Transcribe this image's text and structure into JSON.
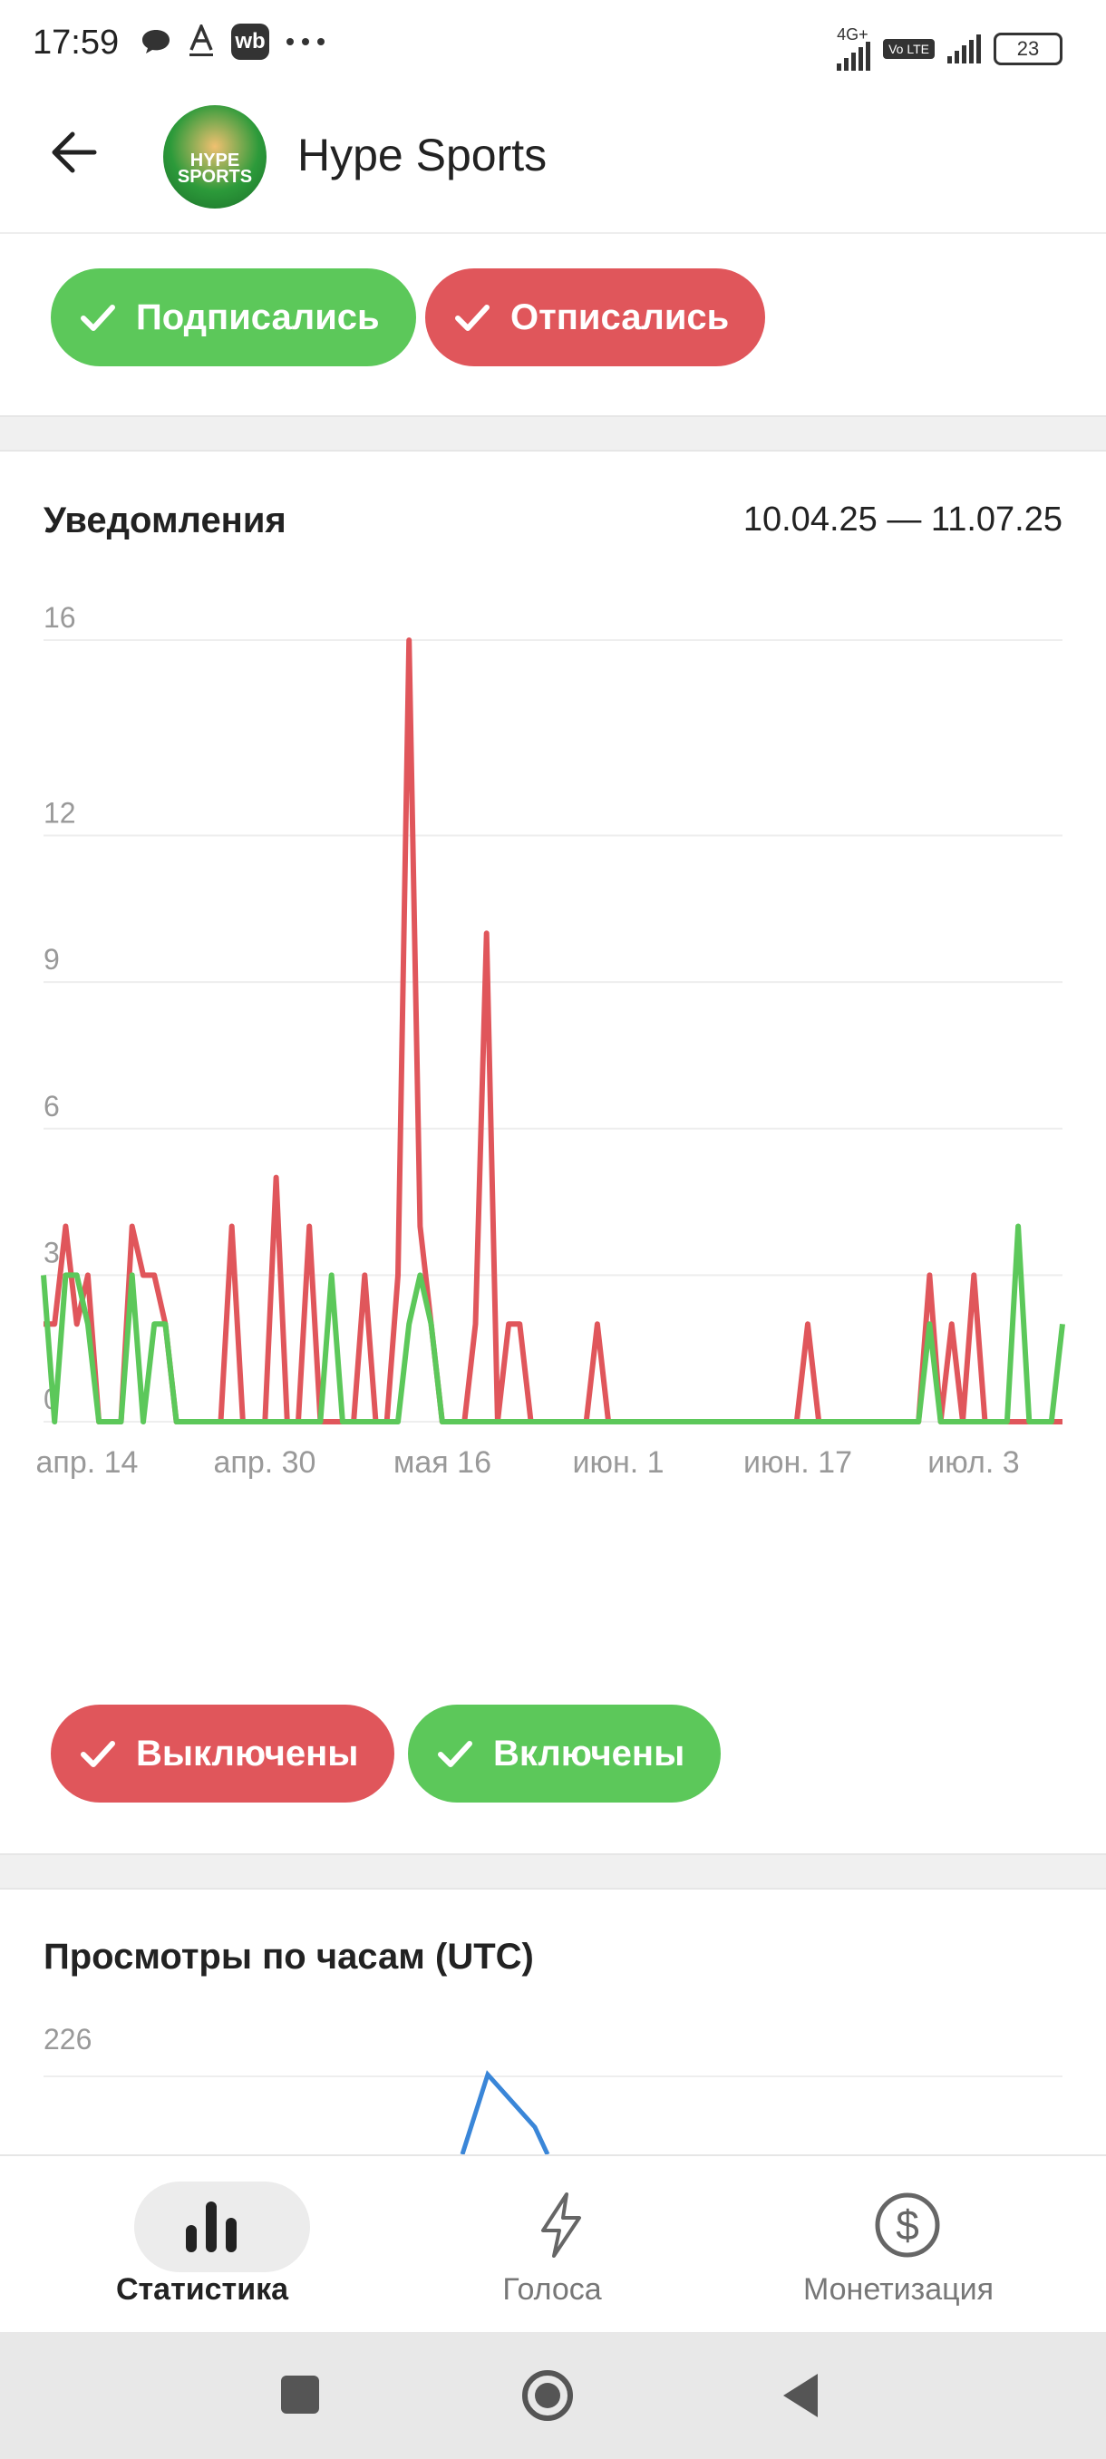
{
  "status_bar": {
    "time": "17:59",
    "left_icons": [
      "chat-bubble-icon",
      "font-a-icon",
      "wb-app-icon",
      "more-dots-icon"
    ],
    "wb_label": "wb",
    "network": "4G+",
    "volte": "Vo LTE",
    "battery": "23"
  },
  "header": {
    "title": "Hype Sports",
    "avatar_text": "HYPE SPORTS"
  },
  "top_filters": [
    {
      "label": "Подписались",
      "color": "#5cc85a",
      "checked": true
    },
    {
      "label": "Отписались",
      "color": "#e0565b",
      "checked": true
    }
  ],
  "notifications_card": {
    "title": "Уведомления",
    "date_range": "10.04.25 — 11.07.25"
  },
  "chart_data": {
    "type": "line",
    "title": "Уведомления",
    "y_ticks": [
      "16",
      "12",
      "9",
      "6",
      "3",
      "0"
    ],
    "x_ticks": [
      "апр. 14",
      "апр. 30",
      "мая 16",
      "июн. 1",
      "июн. 17",
      "июл. 3"
    ],
    "ylim": [
      0,
      16
    ],
    "x_count": 93,
    "grid": true,
    "series": [
      {
        "name": "Выключены",
        "color": "#e0565b",
        "values": [
          2,
          2,
          4,
          2,
          3,
          0,
          0,
          0,
          4,
          3,
          3,
          2,
          0,
          0,
          0,
          0,
          0,
          4,
          0,
          0,
          0,
          5,
          0,
          0,
          4,
          0,
          0,
          0,
          0,
          3,
          0,
          0,
          3,
          16,
          4,
          2,
          0,
          0,
          0,
          2,
          10,
          0,
          2,
          2,
          0,
          0,
          0,
          0,
          0,
          0,
          2,
          0,
          0,
          0,
          0,
          0,
          0,
          0,
          0,
          0,
          0,
          0,
          0,
          0,
          0,
          0,
          0,
          0,
          0,
          2,
          0,
          0,
          0,
          0,
          0,
          0,
          0,
          0,
          0,
          0,
          3,
          0,
          2,
          0,
          3,
          0,
          0,
          0,
          0,
          0,
          0,
          0,
          0
        ]
      },
      {
        "name": "Включены",
        "color": "#5cc85a",
        "values": [
          3,
          0,
          3,
          3,
          2,
          0,
          0,
          0,
          3,
          0,
          2,
          2,
          0,
          0,
          0,
          0,
          0,
          0,
          0,
          0,
          0,
          0,
          0,
          0,
          0,
          0,
          3,
          0,
          0,
          0,
          0,
          0,
          0,
          2,
          3,
          2,
          0,
          0,
          0,
          0,
          0,
          0,
          0,
          0,
          0,
          0,
          0,
          0,
          0,
          0,
          0,
          0,
          0,
          0,
          0,
          0,
          0,
          0,
          0,
          0,
          0,
          0,
          0,
          0,
          0,
          0,
          0,
          0,
          0,
          0,
          0,
          0,
          0,
          0,
          0,
          0,
          0,
          0,
          0,
          0,
          2,
          0,
          0,
          0,
          0,
          0,
          0,
          0,
          4,
          0,
          0,
          0,
          2
        ]
      }
    ]
  },
  "legend_filters": [
    {
      "label": "Выключены",
      "color": "#e0565b",
      "checked": true
    },
    {
      "label": "Включены",
      "color": "#5cc85a",
      "checked": true
    }
  ],
  "hourly_views_card": {
    "title": "Просмотры по часам (UTC)",
    "y_top_tick": "226",
    "line_color": "#3a86d8"
  },
  "bottom_nav": {
    "items": [
      {
        "label": "Статистика",
        "icon": "bar-chart-icon",
        "active": true
      },
      {
        "label": "Голоса",
        "icon": "lightning-icon",
        "active": false
      },
      {
        "label": "Монетизация",
        "icon": "dollar-circle-icon",
        "active": false
      }
    ]
  },
  "system_nav": {
    "buttons": [
      "recent-apps-icon",
      "home-icon",
      "back-triangle-icon"
    ]
  }
}
